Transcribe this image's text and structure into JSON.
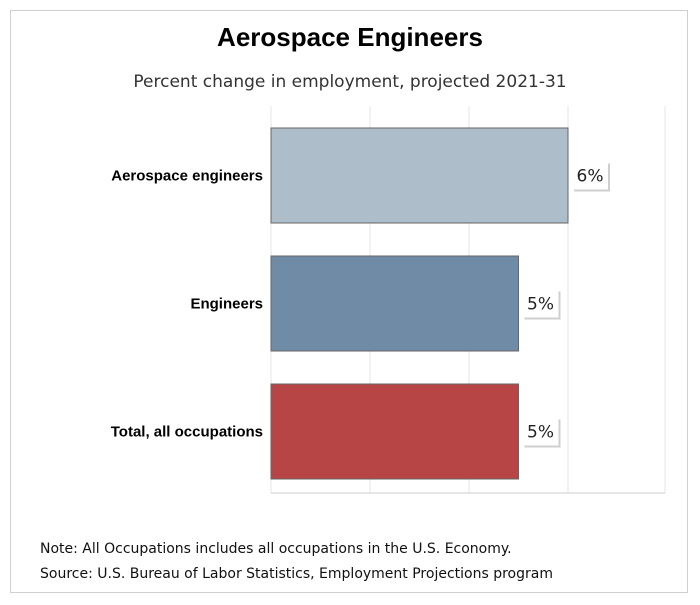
{
  "chart_data": {
    "type": "bar",
    "orientation": "horizontal",
    "title": "Aerospace Engineers",
    "subtitle": "Percent change in employment, projected 2021-31",
    "categories": [
      "Aerospace engineers",
      "Engineers",
      "Total, all occupations"
    ],
    "values": [
      6,
      5,
      5
    ],
    "value_labels": [
      "6%",
      "5%",
      "5%"
    ],
    "colors": [
      "#aebdca",
      "#708ba5",
      "#b84545"
    ],
    "xlim": [
      0,
      8
    ],
    "grid": true
  },
  "notes": [
    "Note: All Occupations includes all occupations in the U.S. Economy.",
    "Source: U.S. Bureau of Labor Statistics, Employment Projections program"
  ]
}
